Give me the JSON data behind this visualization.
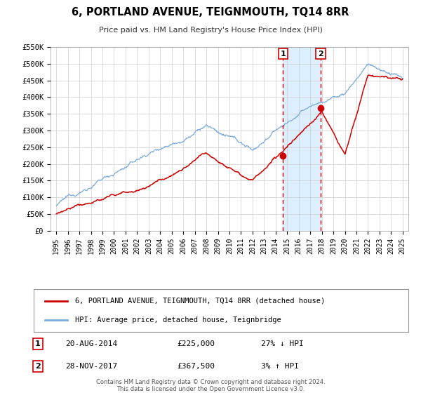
{
  "title": "6, PORTLAND AVENUE, TEIGNMOUTH, TQ14 8RR",
  "subtitle": "Price paid vs. HM Land Registry's House Price Index (HPI)",
  "ylim": [
    0,
    550000
  ],
  "xlim_start": 1994.5,
  "xlim_end": 2025.5,
  "yticks": [
    0,
    50000,
    100000,
    150000,
    200000,
    250000,
    300000,
    350000,
    400000,
    450000,
    500000,
    550000
  ],
  "ytick_labels": [
    "£0",
    "£50K",
    "£100K",
    "£150K",
    "£200K",
    "£250K",
    "£300K",
    "£350K",
    "£400K",
    "£450K",
    "£500K",
    "£550K"
  ],
  "xticks": [
    1995,
    1996,
    1997,
    1998,
    1999,
    2000,
    2001,
    2002,
    2003,
    2004,
    2005,
    2006,
    2007,
    2008,
    2009,
    2010,
    2011,
    2012,
    2013,
    2014,
    2015,
    2016,
    2017,
    2018,
    2019,
    2020,
    2021,
    2022,
    2023,
    2024,
    2025
  ],
  "transaction1_x": 2014.64,
  "transaction1_y": 225000,
  "transaction1_date": "20-AUG-2014",
  "transaction1_price": "£225,000",
  "transaction1_hpi": "27% ↓ HPI",
  "transaction2_x": 2017.91,
  "transaction2_y": 367500,
  "transaction2_date": "28-NOV-2017",
  "transaction2_price": "£367,500",
  "transaction2_hpi": "3% ↑ HPI",
  "shade_color": "#ddeeff",
  "vline_color": "#cc0000",
  "hpi_line_color": "#7aaadd",
  "price_line_color": "#cc0000",
  "legend1_label": "6, PORTLAND AVENUE, TEIGNMOUTH, TQ14 8RR (detached house)",
  "legend2_label": "HPI: Average price, detached house, Teignbridge",
  "footer1": "Contains HM Land Registry data © Crown copyright and database right 2024.",
  "footer2": "This data is licensed under the Open Government Licence v3.0."
}
